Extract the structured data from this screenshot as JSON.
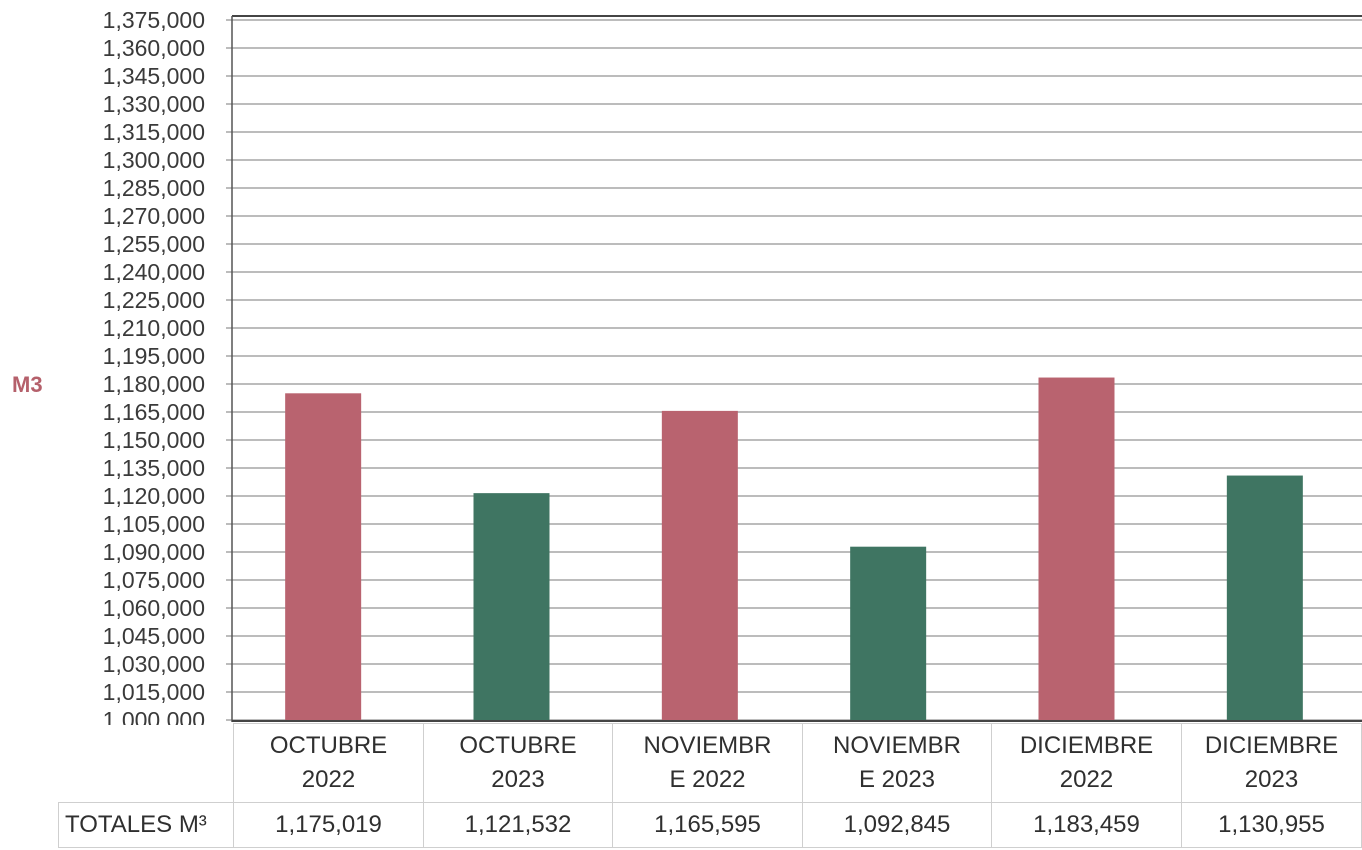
{
  "chart_data": {
    "type": "bar",
    "ylabel": "M3",
    "ylim": [
      1000000,
      1375000
    ],
    "ytick_step": 15000,
    "ytick_labels": [
      "1,000,000",
      "1,015,000",
      "1,030,000",
      "1,045,000",
      "1,060,000",
      "1,075,000",
      "1,090,000",
      "1,105,000",
      "1,120,000",
      "1,135,000",
      "1,150,000",
      "1,165,000",
      "1,180,000",
      "1,195,000",
      "1,210,000",
      "1,225,000",
      "1,240,000",
      "1,255,000",
      "1,270,000",
      "1,285,000",
      "1,300,000",
      "1,315,000",
      "1,330,000",
      "1,345,000",
      "1,360,000",
      "1,375,000"
    ],
    "categories": [
      "OCTUBRE 2022",
      "OCTUBRE 2023",
      "NOVIEMBRE 2022",
      "NOVIEMBRE 2023",
      "DICIEMBRE 2022",
      "DICIEMBRE 2023"
    ],
    "category_lines": [
      [
        "OCTUBRE",
        "2022"
      ],
      [
        "OCTUBRE",
        "2023"
      ],
      [
        "NOVIEMBR",
        "E 2022"
      ],
      [
        "NOVIEMBR",
        "E 2023"
      ],
      [
        "DICIEMBRE",
        "2022"
      ],
      [
        "DICIEMBRE",
        "2023"
      ]
    ],
    "values": [
      1175019,
      1121532,
      1165595,
      1092845,
      1183459,
      1130955
    ],
    "bar_colors": [
      "#b9636f",
      "#3f7562",
      "#b9636f",
      "#3f7562",
      "#b9636f",
      "#3f7562"
    ],
    "grid": true,
    "table": {
      "row_label": "TOTALES M³",
      "values": [
        "1,175,019",
        "1,121,532",
        "1,165,595",
        "1,092,845",
        "1,183,459",
        "1,130,955"
      ]
    }
  }
}
